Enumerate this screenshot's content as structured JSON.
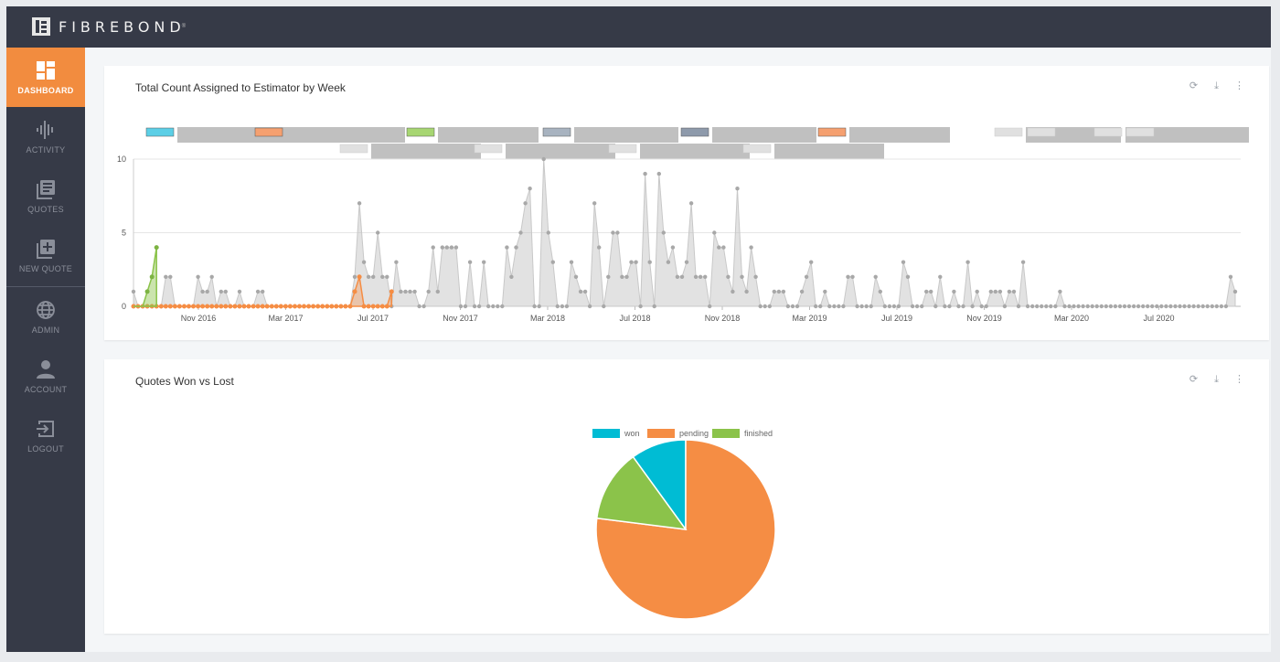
{
  "brand": {
    "name": "FIBREBOND",
    "reg": "®"
  },
  "sidebar": {
    "items": [
      {
        "label": "DASHBOARD",
        "icon": "dashboard-icon",
        "active": true
      },
      {
        "label": "ACTIVITY",
        "icon": "activity-icon"
      },
      {
        "label": "QUOTES",
        "icon": "quotes-icon"
      },
      {
        "label": "NEW QUOTE",
        "icon": "new-quote-icon"
      },
      {
        "label": "ADMIN",
        "icon": "globe-icon"
      },
      {
        "label": "ACCOUNT",
        "icon": "user-icon"
      },
      {
        "label": "LOGOUT",
        "icon": "logout-icon"
      }
    ]
  },
  "colors": {
    "accent": "#f28c3f",
    "nav_bg": "#363a47",
    "won": "#00bcd4",
    "pending": "#f58d44",
    "finished": "#8bc34a"
  },
  "cards": {
    "weekly": {
      "title": "Total Count Assigned to Estimator by Week"
    },
    "pie": {
      "title": "Quotes Won vs Lost"
    }
  },
  "chart_data": [
    {
      "type": "area",
      "title": "Total Count Assigned to Estimator by Week",
      "ylim": [
        0,
        10
      ],
      "yticks": [
        "0",
        "5",
        "10"
      ],
      "xticks": [
        "Nov 2016",
        "Mar 2017",
        "Jul 2017",
        "Nov 2017",
        "Mar 2018",
        "Jul 2018",
        "Nov 2018",
        "Mar 2019",
        "Jul 2019",
        "Nov 2019",
        "Mar 2020",
        "Jul 2020"
      ],
      "legend_placement": "top",
      "grid": true,
      "series": [
        {
          "color": "#9e9e9e",
          "values": [
            1,
            0,
            0,
            0,
            0,
            0,
            0,
            2,
            2,
            0,
            0,
            0,
            0,
            0,
            2,
            1,
            1,
            2,
            0,
            1,
            1,
            0,
            0,
            1,
            0,
            0,
            0,
            1,
            1,
            0,
            0,
            0,
            0,
            0,
            0,
            0,
            0,
            0,
            0,
            0,
            0,
            0,
            0,
            0,
            0,
            0,
            0,
            0,
            2,
            7,
            3,
            2,
            2,
            5,
            2,
            2,
            0,
            3,
            1,
            1,
            1,
            1,
            0,
            0,
            1,
            4,
            1,
            4,
            4,
            4,
            4,
            0,
            0,
            3,
            0,
            0,
            3,
            0,
            0,
            0,
            0,
            4,
            2,
            4,
            5,
            7,
            8,
            0,
            0,
            10,
            5,
            3,
            0,
            0,
            0,
            3,
            2,
            1,
            1,
            0,
            7,
            4,
            0,
            2,
            5,
            5,
            2,
            2,
            3,
            3,
            0,
            9,
            3,
            0,
            9,
            5,
            3,
            4,
            2,
            2,
            3,
            7,
            2,
            2,
            2,
            0,
            5,
            4,
            4,
            2,
            1,
            8,
            2,
            1,
            4,
            2,
            0,
            0,
            0,
            1,
            1,
            1,
            0,
            0,
            0,
            1,
            2,
            3,
            0,
            0,
            1,
            0,
            0,
            0,
            0,
            2,
            2,
            0,
            0,
            0,
            0,
            2,
            1,
            0,
            0,
            0,
            0,
            3,
            2,
            0,
            0,
            0,
            1,
            1,
            0,
            2,
            0,
            0,
            1,
            0,
            0,
            3,
            0,
            1,
            0,
            0,
            1,
            1,
            1,
            0,
            1,
            1,
            0,
            3,
            0,
            0,
            0,
            0,
            0,
            0,
            0,
            1,
            0,
            0,
            0,
            0,
            0,
            0,
            0,
            0,
            0,
            0,
            0,
            0,
            0,
            0,
            0,
            0,
            0,
            0,
            0,
            0,
            0,
            0,
            0,
            0,
            0,
            0,
            0,
            0,
            0,
            0,
            0,
            0,
            0,
            0,
            0,
            0,
            2,
            1
          ]
        },
        {
          "color": "#f58d44",
          "values": [
            0,
            0,
            0,
            0,
            0,
            0,
            0,
            0,
            0,
            0,
            0,
            0,
            0,
            0,
            0,
            0,
            0,
            0,
            0,
            0,
            0,
            0,
            0,
            0,
            0,
            0,
            0,
            0,
            0,
            0,
            0,
            0,
            0,
            0,
            0,
            0,
            0,
            0,
            0,
            0,
            0,
            0,
            0,
            0,
            0,
            0,
            0,
            0,
            1,
            2,
            0,
            0,
            0,
            0,
            0,
            0,
            1
          ]
        },
        {
          "color": "#8bc34a",
          "values": [
            0,
            0,
            0,
            1,
            2,
            4
          ]
        }
      ],
      "legend_swatches": [
        "#5ccfe6",
        "#f5a070",
        "#a7d672",
        "#a8b3c0",
        "#8e9aab",
        "#f5a070",
        "#e0e0e0",
        "#e0e0e0",
        "#e0e0e0",
        "#e0e0e0",
        "#e0e0e0",
        "#e0e0e0",
        "#e0e0e0",
        "#e0e0e0"
      ]
    },
    {
      "type": "pie",
      "title": "Quotes Won vs Lost",
      "categories": [
        "won",
        "pending",
        "finished"
      ],
      "values": [
        10,
        77,
        13
      ],
      "legend_placement": "top"
    }
  ]
}
